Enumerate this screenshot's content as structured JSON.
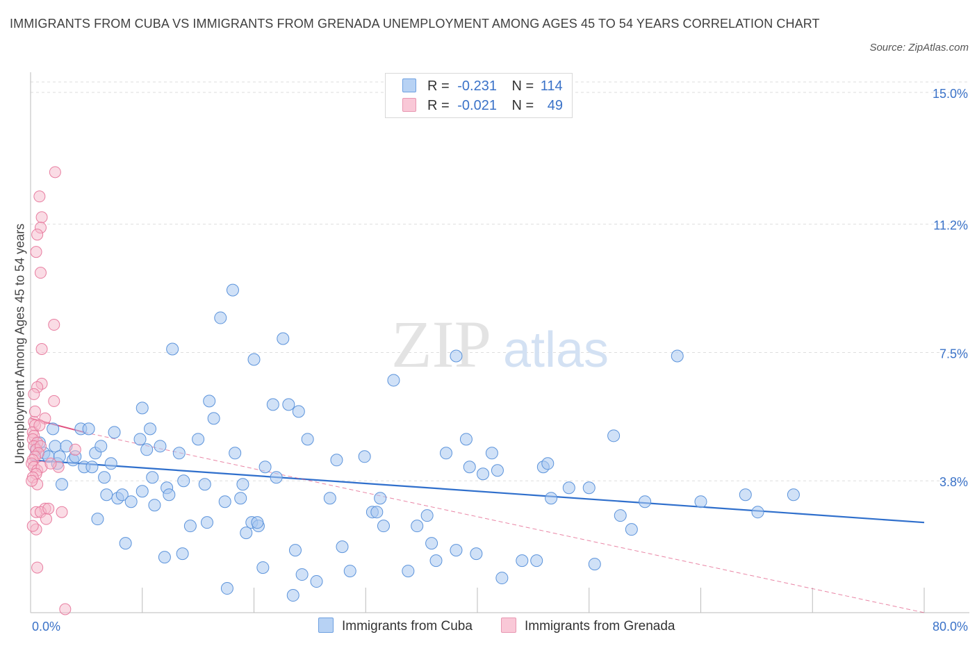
{
  "title": "IMMIGRANTS FROM CUBA VS IMMIGRANTS FROM GRENADA UNEMPLOYMENT AMONG AGES 45 TO 54 YEARS CORRELATION CHART",
  "source": "Source: ZipAtlas.com",
  "colors": {
    "cuba_fill": "#a9c8f0",
    "cuba_stroke": "#5b93db",
    "cuba_line": "#2f6fcc",
    "grenada_fill": "#f6b9cc",
    "grenada_stroke": "#e87da0",
    "grenada_line": "#e0517f",
    "axis_label": "#3a72c8",
    "grid": "#dddddd"
  },
  "legend": {
    "rows": [
      {
        "r_label": "R =",
        "r_value": "-0.231",
        "n_label": "N =",
        "n_value": "114"
      },
      {
        "r_label": "R =",
        "r_value": "-0.021",
        "n_label": "N =",
        "n_value": "49"
      }
    ]
  },
  "bottom_legend": {
    "cuba": "Immigrants from Cuba",
    "grenada": "Immigrants from Grenada"
  },
  "watermark": {
    "zip": "ZIP",
    "atlas": "atlas"
  },
  "chart_data": {
    "type": "scatter",
    "xlabel": "",
    "ylabel": "Unemployment Among Ages 45 to 54 years",
    "xlim": [
      0,
      80
    ],
    "ylim": [
      0,
      15.3
    ],
    "x_tick_labels": [
      "0.0%",
      "80.0%"
    ],
    "y_ticks": [
      3.8,
      7.5,
      11.2,
      15.0
    ],
    "y_tick_labels": [
      "3.8%",
      "7.5%",
      "11.2%",
      "15.0%"
    ],
    "grid": true,
    "series": [
      {
        "name": "Immigrants from Cuba",
        "trend": {
          "x": [
            0,
            80
          ],
          "y": [
            4.4,
            2.6
          ]
        },
        "points": [
          [
            0.5,
            4.7
          ],
          [
            0.8,
            4.9
          ],
          [
            1.2,
            4.6
          ],
          [
            1.6,
            4.5
          ],
          [
            2,
            5.3
          ],
          [
            2.2,
            4.8
          ],
          [
            2.4,
            4.3
          ],
          [
            2.6,
            4.5
          ],
          [
            2.8,
            3.7
          ],
          [
            3.2,
            4.8
          ],
          [
            3.8,
            4.4
          ],
          [
            4.0,
            4.5
          ],
          [
            4.5,
            5.3
          ],
          [
            4.8,
            4.2
          ],
          [
            5.2,
            5.3
          ],
          [
            5.5,
            4.2
          ],
          [
            5.8,
            4.6
          ],
          [
            6.0,
            2.7
          ],
          [
            6.3,
            4.8
          ],
          [
            6.6,
            3.9
          ],
          [
            6.8,
            3.4
          ],
          [
            7.2,
            4.3
          ],
          [
            7.5,
            5.2
          ],
          [
            7.8,
            3.3
          ],
          [
            8.2,
            3.4
          ],
          [
            8.5,
            2.0
          ],
          [
            9.0,
            3.2
          ],
          [
            9.8,
            5.0
          ],
          [
            10,
            5.9
          ],
          [
            10.4,
            4.7
          ],
          [
            10.7,
            5.3
          ],
          [
            10.9,
            3.9
          ],
          [
            11.1,
            3.1
          ],
          [
            11.6,
            4.8
          ],
          [
            12.0,
            1.6
          ],
          [
            12.2,
            3.6
          ],
          [
            12.4,
            3.4
          ],
          [
            12.7,
            7.6
          ],
          [
            13.3,
            4.6
          ],
          [
            13.6,
            1.7
          ],
          [
            13.7,
            3.8
          ],
          [
            14.3,
            2.5
          ],
          [
            15.0,
            5.0
          ],
          [
            15.6,
            3.7
          ],
          [
            15.8,
            2.6
          ],
          [
            16.0,
            6.1
          ],
          [
            16.4,
            5.6
          ],
          [
            17.0,
            8.5
          ],
          [
            17.4,
            3.2
          ],
          [
            17.6,
            0.7
          ],
          [
            18.1,
            9.3
          ],
          [
            18.3,
            4.6
          ],
          [
            18.8,
            3.3
          ],
          [
            19.0,
            3.7
          ],
          [
            19.3,
            2.3
          ],
          [
            19.8,
            2.6
          ],
          [
            20.0,
            7.3
          ],
          [
            20.4,
            2.5
          ],
          [
            20.8,
            1.3
          ],
          [
            21.0,
            4.2
          ],
          [
            21.7,
            6.0
          ],
          [
            22.0,
            3.9
          ],
          [
            22.6,
            7.9
          ],
          [
            23.1,
            6.0
          ],
          [
            23.5,
            0.5
          ],
          [
            23.7,
            1.8
          ],
          [
            24.0,
            5.8
          ],
          [
            24.3,
            1.1
          ],
          [
            24.8,
            5.0
          ],
          [
            25.6,
            0.9
          ],
          [
            26.8,
            3.3
          ],
          [
            27.4,
            4.4
          ],
          [
            27.9,
            1.9
          ],
          [
            28.6,
            1.2
          ],
          [
            29.9,
            4.5
          ],
          [
            30.6,
            2.9
          ],
          [
            31.0,
            2.9
          ],
          [
            31.3,
            3.3
          ],
          [
            31.6,
            2.5
          ],
          [
            32.5,
            6.7
          ],
          [
            33.8,
            1.2
          ],
          [
            34.6,
            2.5
          ],
          [
            35.5,
            2.8
          ],
          [
            35.9,
            2.0
          ],
          [
            36.3,
            1.5
          ],
          [
            37.2,
            4.6
          ],
          [
            38.1,
            1.8
          ],
          [
            39.0,
            5.0
          ],
          [
            39.3,
            4.2
          ],
          [
            39.9,
            1.7
          ],
          [
            40.5,
            4.0
          ],
          [
            41.3,
            4.6
          ],
          [
            41.8,
            4.1
          ],
          [
            42.2,
            1.0
          ],
          [
            44.0,
            1.5
          ],
          [
            45.3,
            1.5
          ],
          [
            45.9,
            4.2
          ],
          [
            46.3,
            4.3
          ],
          [
            46.6,
            3.3
          ],
          [
            48.2,
            3.6
          ],
          [
            50.0,
            3.6
          ],
          [
            50.5,
            1.4
          ],
          [
            52.2,
            5.1
          ],
          [
            52.8,
            2.8
          ],
          [
            53.8,
            2.4
          ],
          [
            55.0,
            3.2
          ],
          [
            57.9,
            7.4
          ],
          [
            60.0,
            3.2
          ],
          [
            64.0,
            3.4
          ],
          [
            65.1,
            2.9
          ],
          [
            68.3,
            3.4
          ],
          [
            38.1,
            7.4
          ],
          [
            20.3,
            2.6
          ],
          [
            10.0,
            3.5
          ]
        ]
      },
      {
        "name": "Immigrants from Grenada",
        "trend": {
          "x": [
            0,
            4.8
          ],
          "y": [
            5.6,
            5.2
          ]
        },
        "trend_ext": {
          "x": [
            4.8,
            80
          ],
          "y": [
            5.2,
            0.0
          ]
        },
        "points": [
          [
            2.2,
            12.7
          ],
          [
            0.8,
            12.0
          ],
          [
            1.0,
            11.4
          ],
          [
            0.9,
            11.1
          ],
          [
            0.6,
            10.9
          ],
          [
            0.5,
            10.4
          ],
          [
            0.9,
            9.8
          ],
          [
            2.1,
            8.3
          ],
          [
            1.0,
            7.6
          ],
          [
            1.0,
            6.6
          ],
          [
            0.6,
            6.5
          ],
          [
            0.3,
            6.3
          ],
          [
            2.1,
            6.1
          ],
          [
            0.3,
            5.5
          ],
          [
            1.3,
            5.6
          ],
          [
            0.4,
            5.4
          ],
          [
            0.2,
            5.2
          ],
          [
            0.3,
            5.1
          ],
          [
            0.2,
            5.0
          ],
          [
            0.6,
            4.9
          ],
          [
            0.3,
            4.8
          ],
          [
            0.5,
            4.7
          ],
          [
            0.9,
            4.8
          ],
          [
            4.0,
            4.7
          ],
          [
            0.7,
            4.6
          ],
          [
            0.4,
            4.5
          ],
          [
            0.2,
            4.4
          ],
          [
            0.1,
            4.3
          ],
          [
            0.3,
            4.2
          ],
          [
            0.6,
            4.1
          ],
          [
            1.0,
            4.2
          ],
          [
            0.5,
            4.0
          ],
          [
            0.2,
            3.9
          ],
          [
            0.6,
            3.7
          ],
          [
            0.1,
            3.8
          ],
          [
            1.3,
            3.0
          ],
          [
            0.5,
            2.9
          ],
          [
            0.9,
            2.9
          ],
          [
            2.8,
            2.9
          ],
          [
            1.4,
            2.7
          ],
          [
            0.5,
            2.4
          ],
          [
            0.6,
            1.3
          ],
          [
            3.1,
            0.1
          ],
          [
            2.5,
            4.2
          ],
          [
            1.8,
            4.3
          ],
          [
            0.8,
            5.4
          ],
          [
            0.4,
            5.8
          ],
          [
            0.2,
            2.5
          ],
          [
            1.6,
            3.0
          ]
        ]
      }
    ]
  }
}
